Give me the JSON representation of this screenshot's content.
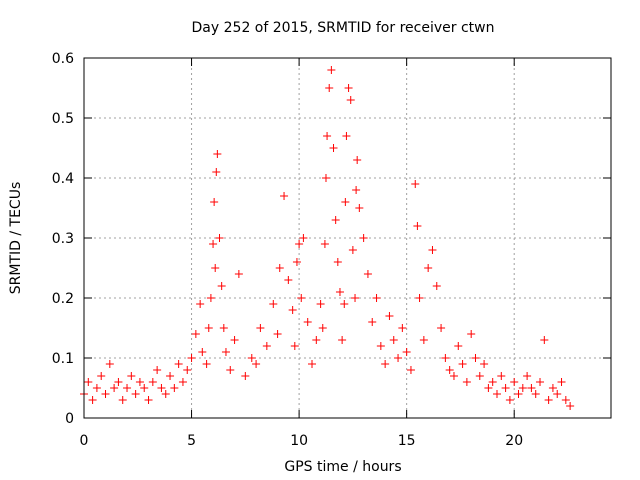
{
  "chart_data": {
    "type": "scatter",
    "title": "Day 252 of 2015, SRMTID for receiver ctwn",
    "xlabel": "GPS time / hours",
    "ylabel": "SRMTID / TECUs",
    "xlim": [
      0,
      24.5
    ],
    "ylim": [
      0,
      0.6
    ],
    "xticks": [
      "0",
      "5",
      "10",
      "15",
      "20"
    ],
    "xtick_values": [
      0,
      5,
      10,
      15,
      20
    ],
    "yticks": [
      "0",
      "0.1",
      "0.2",
      "0.3",
      "0.4",
      "0.5",
      "0.6"
    ],
    "ytick_values": [
      0,
      0.1,
      0.2,
      0.3,
      0.4,
      0.5,
      0.6
    ],
    "grid": true,
    "marker": "+",
    "color": "#ff0000",
    "series": [
      {
        "name": "SRMTID",
        "x": [
          0.0,
          0.2,
          0.4,
          0.6,
          0.8,
          1.0,
          1.2,
          1.4,
          1.6,
          1.8,
          2.0,
          2.2,
          2.4,
          2.6,
          2.8,
          3.0,
          3.2,
          3.4,
          3.6,
          3.8,
          4.0,
          4.2,
          4.4,
          4.6,
          4.8,
          5.0,
          5.2,
          5.4,
          5.5,
          5.7,
          5.8,
          5.9,
          6.0,
          6.05,
          6.1,
          6.15,
          6.2,
          6.3,
          6.4,
          6.5,
          6.6,
          6.8,
          7.0,
          7.2,
          7.5,
          7.8,
          8.0,
          8.2,
          8.5,
          8.8,
          9.0,
          9.1,
          9.3,
          9.5,
          9.7,
          9.8,
          9.9,
          10.0,
          10.1,
          10.2,
          10.4,
          10.6,
          10.8,
          11.0,
          11.1,
          11.2,
          11.25,
          11.3,
          11.4,
          11.5,
          11.6,
          11.7,
          11.8,
          11.9,
          12.0,
          12.1,
          12.15,
          12.2,
          12.3,
          12.4,
          12.5,
          12.6,
          12.65,
          12.7,
          12.8,
          13.0,
          13.2,
          13.4,
          13.6,
          13.8,
          14.0,
          14.2,
          14.4,
          14.6,
          14.8,
          15.0,
          15.2,
          15.4,
          15.5,
          15.6,
          15.8,
          16.0,
          16.2,
          16.4,
          16.6,
          16.8,
          17.0,
          17.2,
          17.4,
          17.6,
          17.8,
          18.0,
          18.2,
          18.4,
          18.6,
          18.8,
          19.0,
          19.2,
          19.4,
          19.6,
          19.8,
          20.0,
          20.2,
          20.4,
          20.6,
          20.8,
          21.0,
          21.2,
          21.4,
          21.6,
          21.8,
          22.0,
          22.2,
          22.4,
          22.6
        ],
        "y": [
          0.04,
          0.06,
          0.03,
          0.05,
          0.07,
          0.04,
          0.09,
          0.05,
          0.06,
          0.03,
          0.05,
          0.07,
          0.04,
          0.06,
          0.05,
          0.03,
          0.06,
          0.08,
          0.05,
          0.04,
          0.07,
          0.05,
          0.09,
          0.06,
          0.08,
          0.1,
          0.14,
          0.19,
          0.11,
          0.09,
          0.15,
          0.2,
          0.29,
          0.36,
          0.25,
          0.41,
          0.44,
          0.3,
          0.22,
          0.15,
          0.11,
          0.08,
          0.13,
          0.24,
          0.07,
          0.1,
          0.09,
          0.15,
          0.12,
          0.19,
          0.14,
          0.25,
          0.37,
          0.23,
          0.18,
          0.12,
          0.26,
          0.29,
          0.2,
          0.3,
          0.16,
          0.09,
          0.13,
          0.19,
          0.15,
          0.29,
          0.4,
          0.47,
          0.55,
          0.58,
          0.45,
          0.33,
          0.26,
          0.21,
          0.13,
          0.19,
          0.36,
          0.47,
          0.55,
          0.53,
          0.28,
          0.2,
          0.38,
          0.43,
          0.35,
          0.3,
          0.24,
          0.16,
          0.2,
          0.12,
          0.09,
          0.17,
          0.13,
          0.1,
          0.15,
          0.11,
          0.08,
          0.39,
          0.32,
          0.2,
          0.13,
          0.25,
          0.28,
          0.22,
          0.15,
          0.1,
          0.08,
          0.07,
          0.12,
          0.09,
          0.06,
          0.14,
          0.1,
          0.07,
          0.09,
          0.05,
          0.06,
          0.04,
          0.07,
          0.05,
          0.03,
          0.06,
          0.04,
          0.05,
          0.07,
          0.05,
          0.04,
          0.06,
          0.13,
          0.03,
          0.05,
          0.04,
          0.06,
          0.03,
          0.02
        ]
      }
    ]
  }
}
